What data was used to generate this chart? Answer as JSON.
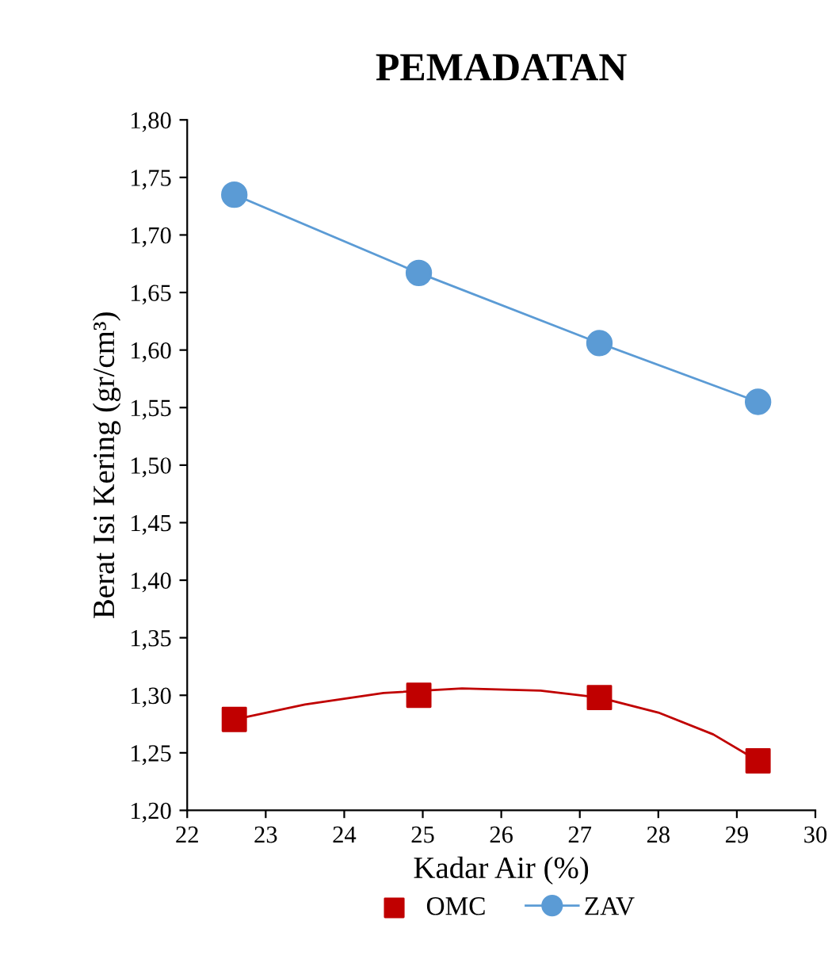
{
  "chart_data": {
    "type": "line",
    "title": "PEMADATAN",
    "xlabel": "Kadar Air (%)",
    "ylabel": "Berat Isi Kering (gr/cm³)",
    "xlim": [
      22,
      30
    ],
    "xticks": [
      22,
      23,
      24,
      25,
      26,
      27,
      28,
      29,
      30
    ],
    "ylim": [
      1.2,
      1.8
    ],
    "yticks": [
      {
        "value": 1.2,
        "label": "1,20"
      },
      {
        "value": 1.25,
        "label": "1,25"
      },
      {
        "value": 1.3,
        "label": "1,30"
      },
      {
        "value": 1.35,
        "label": "1,35"
      },
      {
        "value": 1.4,
        "label": "1,40"
      },
      {
        "value": 1.45,
        "label": "1,45"
      },
      {
        "value": 1.5,
        "label": "1,50"
      },
      {
        "value": 1.55,
        "label": "1,55"
      },
      {
        "value": 1.6,
        "label": "1,60"
      },
      {
        "value": 1.65,
        "label": "1,65"
      },
      {
        "value": 1.7,
        "label": "1,70"
      },
      {
        "value": 1.75,
        "label": "1,75"
      },
      {
        "value": 1.8,
        "label": "1,80"
      }
    ],
    "grid": false,
    "legend": "bottom",
    "series": [
      {
        "name": "OMC",
        "type": "scatter",
        "marker": "square",
        "color": "#c00000",
        "x": [
          22.6,
          24.95,
          27.25,
          29.27
        ],
        "values": [
          1.279,
          1.3,
          1.298,
          1.243
        ]
      },
      {
        "marker": "none",
        "color": "#c00000",
        "x": [
          22.6,
          23.5,
          24.5,
          25.5,
          26.5,
          27.25,
          28.0,
          28.7,
          29.27
        ],
        "values": [
          1.279,
          1.292,
          1.302,
          1.306,
          1.304,
          1.298,
          1.285,
          1.266,
          1.243
        ]
      },
      {
        "name": "ZAV",
        "marker": "circle",
        "color": "#5b9bd5",
        "x": [
          22.6,
          24.95,
          27.25,
          29.27
        ],
        "values": [
          1.735,
          1.667,
          1.606,
          1.555
        ]
      }
    ]
  }
}
